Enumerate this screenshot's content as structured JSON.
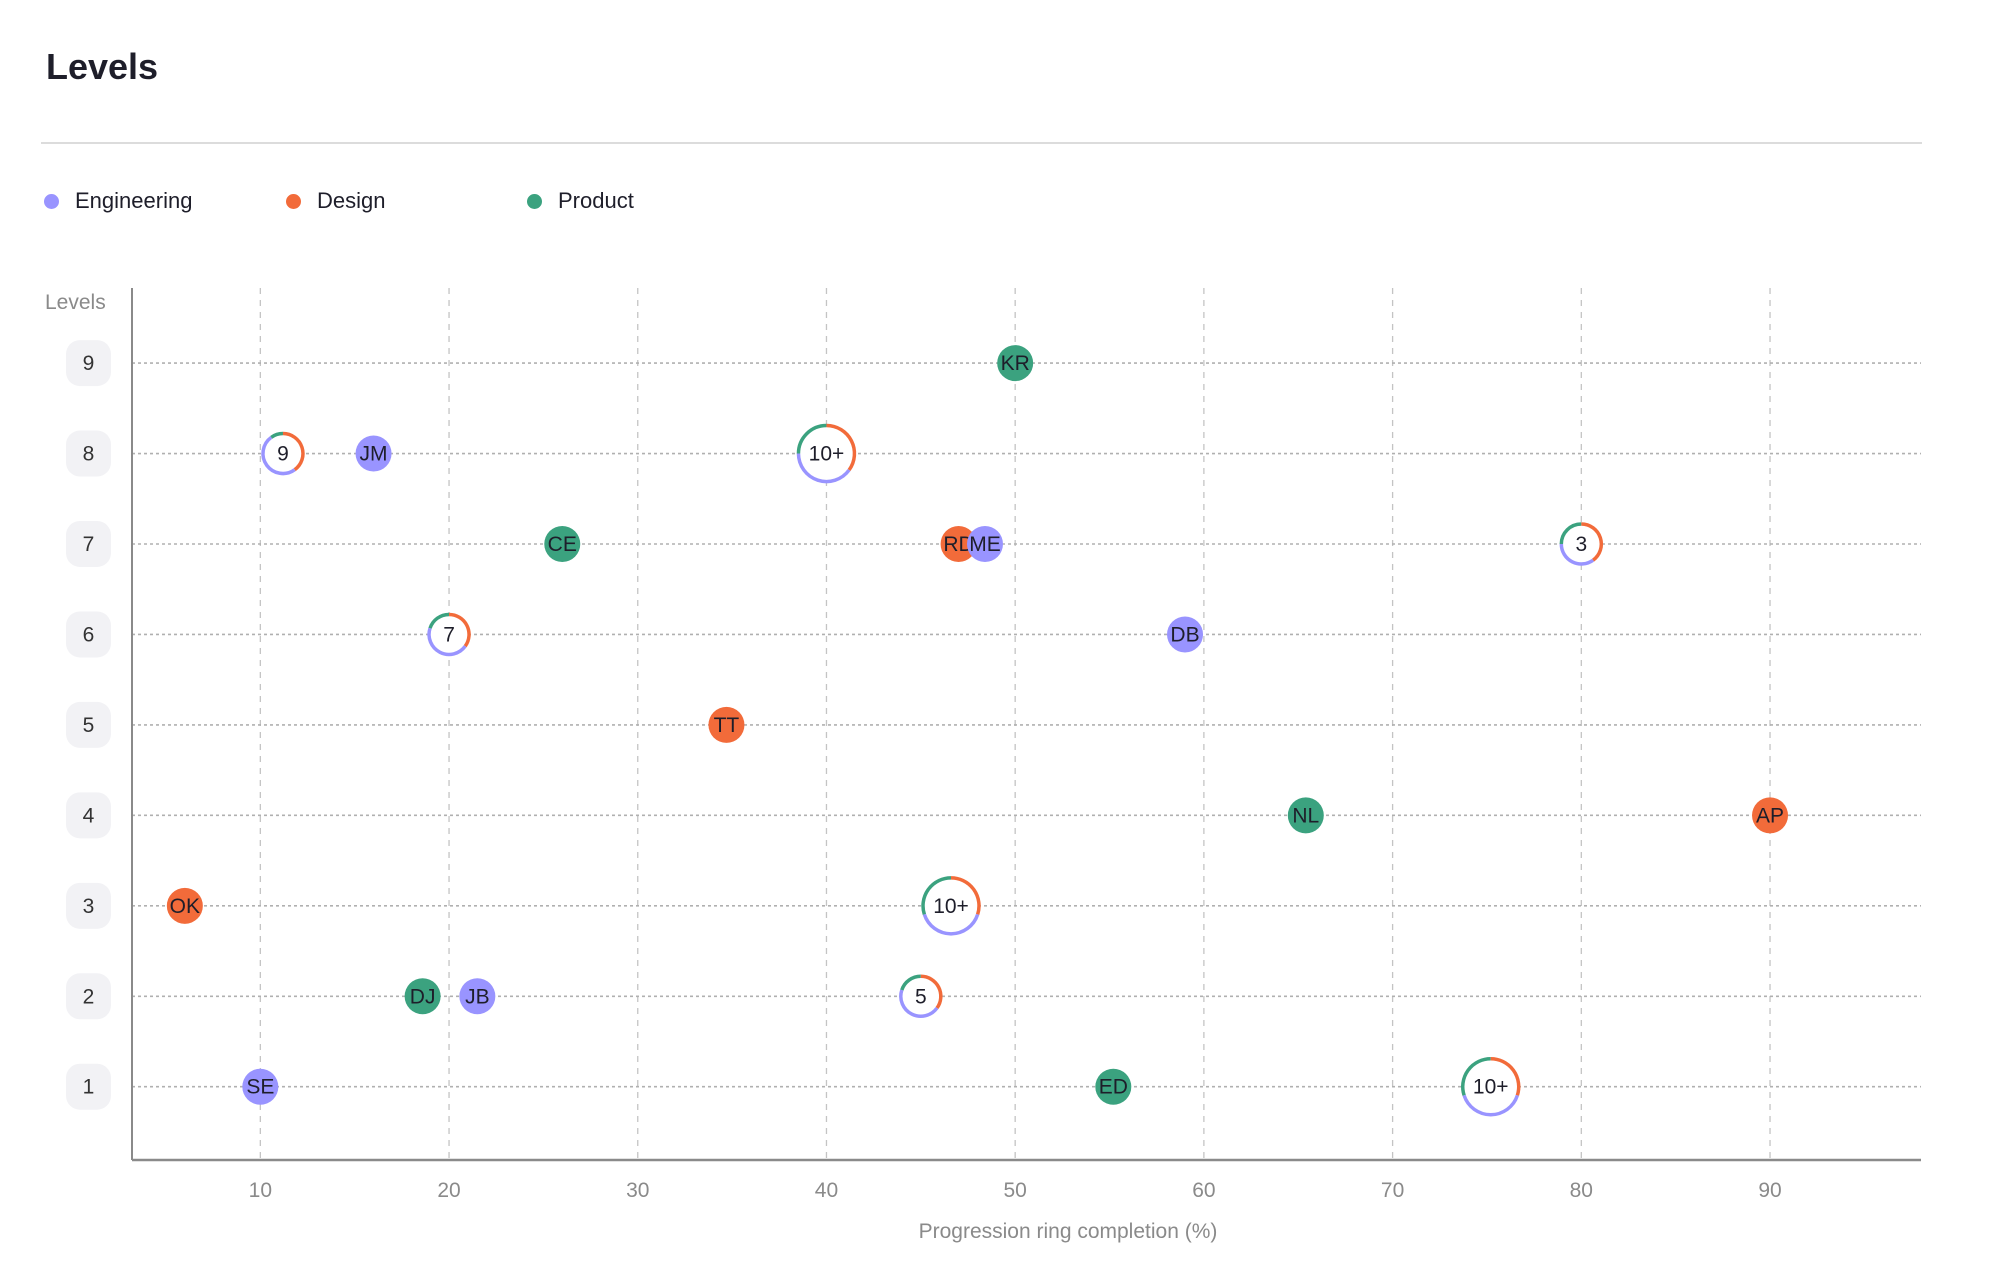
{
  "header": {
    "title": "Levels"
  },
  "legend": [
    {
      "label": "Engineering",
      "color": "#9994FF"
    },
    {
      "label": "Design",
      "color": "#F26B3A"
    },
    {
      "label": "Product",
      "color": "#3BA27F"
    }
  ],
  "chart_data": {
    "type": "scatter",
    "title": "",
    "xlabel": "Progression ring completion (%)",
    "ylabel": "Levels",
    "xlim": [
      3.2,
      98
    ],
    "ylim": [
      0.19,
      9.83
    ],
    "xticks": [
      10,
      20,
      30,
      40,
      50,
      60,
      70,
      80,
      90
    ],
    "yticks": [
      1,
      2,
      3,
      4,
      5,
      6,
      7,
      8,
      9
    ],
    "grid": true,
    "legend_position": "top-left",
    "colors": {
      "Engineering": "#9994FF",
      "Design": "#F26B3A",
      "Product": "#3BA27F"
    },
    "points": [
      {
        "label": "KR",
        "x": 50,
        "y": 9,
        "group": "Product"
      },
      {
        "label": "JM",
        "x": 16,
        "y": 8,
        "group": "Engineering"
      },
      {
        "label": "CE",
        "x": 26,
        "y": 7,
        "group": "Product"
      },
      {
        "label": "RD",
        "x": 47,
        "y": 7,
        "group": "Design"
      },
      {
        "label": "ME",
        "x": 48.4,
        "y": 7,
        "group": "Engineering"
      },
      {
        "label": "DB",
        "x": 59,
        "y": 6,
        "group": "Engineering"
      },
      {
        "label": "TT",
        "x": 34.7,
        "y": 5,
        "group": "Design"
      },
      {
        "label": "NL",
        "x": 65.4,
        "y": 4,
        "group": "Product"
      },
      {
        "label": "AP",
        "x": 90,
        "y": 4,
        "group": "Design"
      },
      {
        "label": "OK",
        "x": 6,
        "y": 3,
        "group": "Design"
      },
      {
        "label": "DJ",
        "x": 18.6,
        "y": 2,
        "group": "Product"
      },
      {
        "label": "JB",
        "x": 21.5,
        "y": 2,
        "group": "Engineering"
      },
      {
        "label": "SE",
        "x": 10,
        "y": 1,
        "group": "Engineering"
      },
      {
        "label": "ED",
        "x": 55.2,
        "y": 1,
        "group": "Product"
      }
    ],
    "clusters": [
      {
        "label": "9",
        "x": 11.2,
        "y": 8,
        "shares": {
          "Product": 0.1,
          "Design": 0.4,
          "Engineering": 0.5
        }
      },
      {
        "label": "10+",
        "x": 40,
        "y": 8,
        "shares": {
          "Product": 0.25,
          "Design": 0.35,
          "Engineering": 0.4
        }
      },
      {
        "label": "3",
        "x": 80,
        "y": 7,
        "shares": {
          "Product": 0.25,
          "Design": 0.4,
          "Engineering": 0.35
        }
      },
      {
        "label": "7",
        "x": 20,
        "y": 6,
        "shares": {
          "Product": 0.2,
          "Design": 0.35,
          "Engineering": 0.45
        }
      },
      {
        "label": "10+",
        "x": 46.6,
        "y": 3,
        "shares": {
          "Product": 0.3,
          "Design": 0.3,
          "Engineering": 0.4
        }
      },
      {
        "label": "5",
        "x": 45,
        "y": 2,
        "shares": {
          "Product": 0.2,
          "Design": 0.35,
          "Engineering": 0.45
        }
      },
      {
        "label": "10+",
        "x": 75.2,
        "y": 1,
        "shares": {
          "Product": 0.3,
          "Design": 0.3,
          "Engineering": 0.4
        }
      }
    ]
  }
}
